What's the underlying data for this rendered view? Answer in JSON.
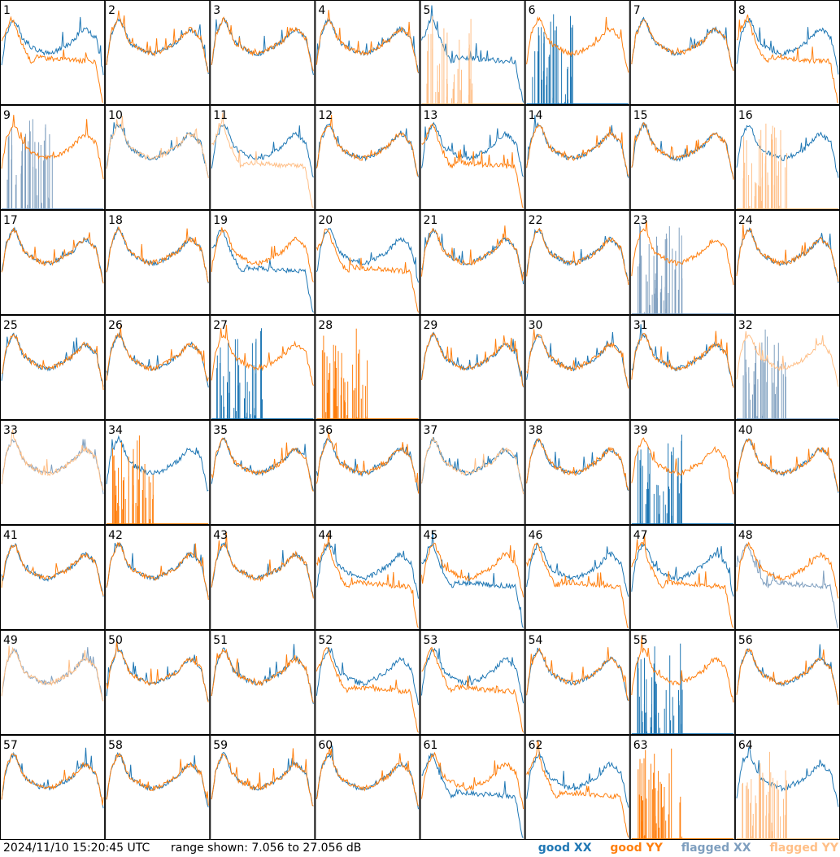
{
  "chart_data": {
    "type": "line",
    "layout": "small-multiples 8x8",
    "panels": [
      "1",
      "2",
      "3",
      "4",
      "5",
      "6",
      "7",
      "8",
      "9",
      "10",
      "11",
      "12",
      "13",
      "14",
      "15",
      "16",
      "17",
      "18",
      "19",
      "20",
      "21",
      "22",
      "23",
      "24",
      "25",
      "26",
      "27",
      "28",
      "29",
      "30",
      "31",
      "32",
      "33",
      "34",
      "35",
      "36",
      "37",
      "38",
      "39",
      "40",
      "41",
      "42",
      "43",
      "44",
      "45",
      "46",
      "47",
      "48",
      "49",
      "50",
      "51",
      "52",
      "53",
      "54",
      "55",
      "56",
      "57",
      "58",
      "59",
      "60",
      "61",
      "62",
      "63",
      "64"
    ],
    "ylim": [
      7.056,
      27.056
    ],
    "yunit": "dB",
    "legend": [
      "good XX",
      "good YY",
      "flagged XX",
      "flagged YY"
    ],
    "legend_placement": "bottom-right",
    "colors": {
      "good_xx": "#1f77b4",
      "good_yy": "#ff7f0e",
      "flagged_xx": "#7f9fbf",
      "flagged_yy": "#ffbf87"
    },
    "panel_kinds": {
      "1": [
        "xx:typical",
        "yy:lowered"
      ],
      "2": [
        "xx:typical",
        "yy:typical"
      ],
      "3": [
        "xx:typical",
        "yy:typical"
      ],
      "4": [
        "xx:typical",
        "yy:typical"
      ],
      "5": [
        "xx:lowered",
        "fyy:spikes"
      ],
      "6": [
        "xx:spikes",
        "yy:typical"
      ],
      "7": [
        "xx:typical",
        "yy:typical"
      ],
      "8": [
        "xx:typical",
        "yy:lowered"
      ],
      "9": [
        "fxx:spikes",
        "yy:typical"
      ],
      "10": [
        "xx:typical",
        "fyy:typical"
      ],
      "11": [
        "xx:typical",
        "fyy:lowered"
      ],
      "12": [
        "xx:typical",
        "yy:typical"
      ],
      "13": [
        "xx:typical",
        "yy:lowered"
      ],
      "14": [
        "xx:typical",
        "yy:typical"
      ],
      "15": [
        "xx:typical",
        "yy:typical"
      ],
      "16": [
        "xx:typical",
        "fyy:spikes"
      ],
      "17": [
        "xx:typical",
        "yy:typical"
      ],
      "18": [
        "xx:typical",
        "yy:typical"
      ],
      "19": [
        "xx:lowered",
        "yy:typical"
      ],
      "20": [
        "xx:typical",
        "yy:lowered"
      ],
      "21": [
        "xx:typical",
        "yy:typical"
      ],
      "22": [
        "xx:typical",
        "yy:typical"
      ],
      "23": [
        "fxx:spikes",
        "yy:typical"
      ],
      "24": [
        "xx:typical",
        "yy:typical"
      ],
      "25": [
        "xx:typical",
        "yy:typical"
      ],
      "26": [
        "xx:typical",
        "yy:typical"
      ],
      "27": [
        "xx:spikes",
        "yy:typical"
      ],
      "28": [
        "yy:spikes"
      ],
      "29": [
        "xx:typical",
        "yy:typical"
      ],
      "30": [
        "xx:typical",
        "yy:typical"
      ],
      "31": [
        "xx:typical",
        "yy:typical"
      ],
      "32": [
        "fxx:spikes",
        "fyy:typical"
      ],
      "33": [
        "fxx:typical",
        "fyy:typical"
      ],
      "34": [
        "xx:typical",
        "yy:spikes"
      ],
      "35": [
        "xx:typical",
        "yy:typical"
      ],
      "36": [
        "xx:typical",
        "yy:typical"
      ],
      "37": [
        "xx:typical",
        "fyy:typical"
      ],
      "38": [
        "xx:typical",
        "yy:typical"
      ],
      "39": [
        "xx:spikes",
        "yy:typical"
      ],
      "40": [
        "xx:typical",
        "yy:typical"
      ],
      "41": [
        "xx:typical",
        "yy:typical"
      ],
      "42": [
        "xx:typical",
        "yy:typical"
      ],
      "43": [
        "xx:typical",
        "yy:typical"
      ],
      "44": [
        "xx:typical",
        "yy:lowered"
      ],
      "45": [
        "xx:lowered",
        "yy:typical"
      ],
      "46": [
        "xx:typical",
        "yy:lowered"
      ],
      "47": [
        "xx:typical",
        "yy:lowered"
      ],
      "48": [
        "fxx:lowered",
        "yy:typical"
      ],
      "49": [
        "fxx:typical",
        "fyy:typical"
      ],
      "50": [
        "xx:typical",
        "yy:typical"
      ],
      "51": [
        "xx:typical",
        "yy:typical"
      ],
      "52": [
        "xx:typical",
        "yy:lowered"
      ],
      "53": [
        "xx:typical",
        "yy:lowered"
      ],
      "54": [
        "xx:typical",
        "yy:typical"
      ],
      "55": [
        "xx:spikes",
        "yy:typical"
      ],
      "56": [
        "xx:typical",
        "yy:typical"
      ],
      "57": [
        "xx:typical",
        "yy:typical"
      ],
      "58": [
        "xx:typical",
        "yy:typical"
      ],
      "59": [
        "xx:typical",
        "yy:typical"
      ],
      "60": [
        "xx:typical",
        "yy:typical"
      ],
      "61": [
        "xx:lowered",
        "yy:typical"
      ],
      "62": [
        "xx:typical",
        "yy:lowered"
      ],
      "63": [
        "yy:spikes"
      ],
      "64": [
        "xx:typical",
        "fyy:spikes"
      ]
    }
  },
  "footer": {
    "timestamp": "2024/11/10 15:20:45 UTC",
    "range": "range shown: 7.056 to 27.056 dB",
    "legend": {
      "good_xx": "good XX",
      "good_yy": "good YY",
      "flagged_xx": "flagged XX",
      "flagged_yy": "flagged YY"
    }
  }
}
